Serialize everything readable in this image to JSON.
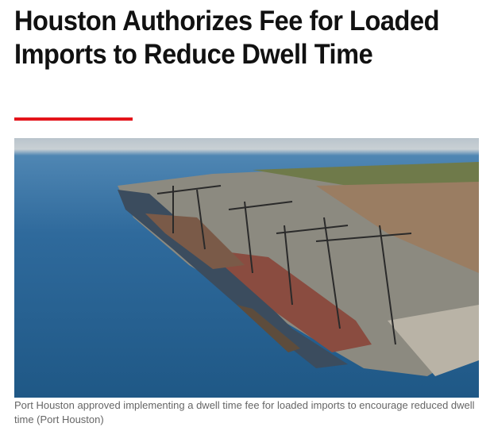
{
  "article": {
    "title": "Houston Authorizes Fee for Loaded Imports to Reduce Dwell Time",
    "accent_color": "#e4141b",
    "image_alt": "Aerial view of container ships at Port Houston terminal",
    "caption": "Port Houston approved implementing a dwell time fee for loaded imports to encourage reduced dwell time (Port Houston)"
  }
}
